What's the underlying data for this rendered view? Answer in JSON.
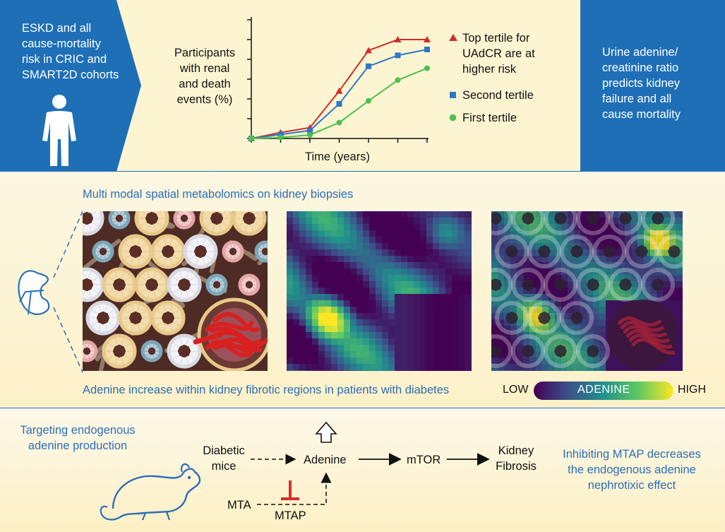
{
  "top": {
    "left_box_lines": [
      "ESKD and all",
      "cause-mortality",
      "risk in CRIC and",
      "SMART2D cohorts"
    ],
    "right_box_lines": [
      "Urine adenine/",
      "creatinine ratio",
      "predicts kidney",
      "failure and all",
      "cause mortality"
    ],
    "colors": {
      "brand_blue": "#1f6fb7",
      "top_tertile": "#cf2c2c",
      "second_tertile": "#2e79c4",
      "first_tertile": "#4fbf4f"
    }
  },
  "chart_data": {
    "type": "line",
    "ylabel_lines": [
      "Participants",
      "with renal",
      "and death",
      "events (%)"
    ],
    "xlabel": "Time (years)",
    "x": [
      0,
      1,
      2,
      3,
      4,
      5,
      6
    ],
    "ylim": [
      0,
      6
    ],
    "series": [
      {
        "name_lines": [
          "Top tertile for",
          "UAdCR are at",
          "higher risk"
        ],
        "marker": "triangle",
        "color": "#cf2c2c",
        "values": [
          0,
          0.3,
          0.55,
          2.4,
          4.45,
          5.0,
          5.0
        ]
      },
      {
        "name_lines": [
          "Second tertile"
        ],
        "marker": "square",
        "color": "#2e79c4",
        "values": [
          0,
          0.2,
          0.4,
          1.75,
          3.65,
          4.2,
          4.5
        ]
      },
      {
        "name_lines": [
          "First tertile"
        ],
        "marker": "circle",
        "color": "#4fbf4f",
        "values": [
          0,
          0.05,
          0.18,
          0.8,
          1.9,
          2.95,
          3.55
        ]
      }
    ]
  },
  "middle": {
    "title": "Multi modal spatial metabolomics on kidney biopsies",
    "caption": "Adenine increase within kidney fibrotic regions in patients with diabetes",
    "colorbar": {
      "low": "LOW",
      "label": "ADENINE",
      "high": "HIGH"
    }
  },
  "bottom": {
    "left_lines": [
      "Targeting endogenous",
      "adenine production"
    ],
    "right_lines": [
      "Inhibiting MTAP decreases",
      "the endogenous adenine",
      "nephrotixic effect"
    ],
    "pathway": {
      "diabetic_lines": [
        "Diabetic",
        "mice"
      ],
      "adenine": "Adenine",
      "mtor": "mTOR",
      "fibrosis_lines": [
        "Kidney",
        "Fibrosis"
      ],
      "mta": "MTA",
      "mtap": "MTAP"
    }
  }
}
